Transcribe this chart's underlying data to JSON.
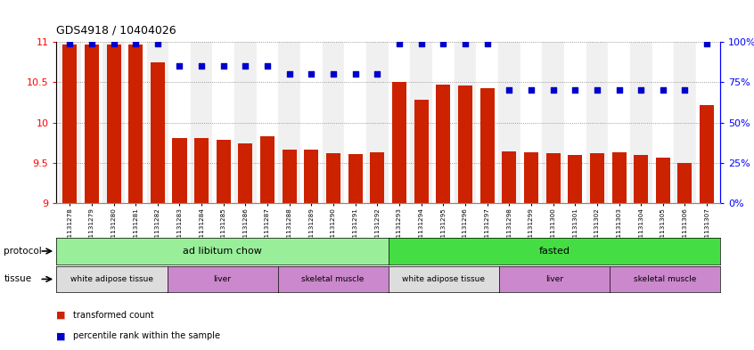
{
  "title": "GDS4918 / 10404026",
  "samples": [
    "GSM1131278",
    "GSM1131279",
    "GSM1131280",
    "GSM1131281",
    "GSM1131282",
    "GSM1131283",
    "GSM1131284",
    "GSM1131285",
    "GSM1131286",
    "GSM1131287",
    "GSM1131288",
    "GSM1131289",
    "GSM1131290",
    "GSM1131291",
    "GSM1131292",
    "GSM1131293",
    "GSM1131294",
    "GSM1131295",
    "GSM1131296",
    "GSM1131297",
    "GSM1131298",
    "GSM1131299",
    "GSM1131300",
    "GSM1131301",
    "GSM1131302",
    "GSM1131303",
    "GSM1131304",
    "GSM1131305",
    "GSM1131306",
    "GSM1131307"
  ],
  "bar_values": [
    10.97,
    10.97,
    10.97,
    10.97,
    10.75,
    9.81,
    9.81,
    9.79,
    9.74,
    9.83,
    9.66,
    9.66,
    9.62,
    9.61,
    9.63,
    10.5,
    10.28,
    10.47,
    10.46,
    10.43,
    9.64,
    9.63,
    9.62,
    9.6,
    9.62,
    9.63,
    9.6,
    9.56,
    9.5,
    10.22
  ],
  "percentile_values": [
    99,
    99,
    99,
    99,
    99,
    85,
    85,
    85,
    85,
    85,
    80,
    80,
    80,
    80,
    80,
    99,
    99,
    99,
    99,
    99,
    70,
    70,
    70,
    70,
    70,
    70,
    70,
    70,
    70,
    99
  ],
  "bar_color": "#cc2200",
  "percentile_color": "#0000cc",
  "ylim_left": [
    9.0,
    11.0
  ],
  "ylim_right": [
    0,
    100
  ],
  "yticks_left": [
    9.0,
    9.5,
    10.0,
    10.5,
    11.0
  ],
  "yticks_right": [
    0,
    25,
    50,
    75,
    100
  ],
  "protocol_labels": [
    "ad libitum chow",
    "fasted"
  ],
  "protocol_colors": [
    "#99ee99",
    "#44dd44"
  ],
  "protocol_col_ranges": [
    [
      0,
      14
    ],
    [
      15,
      29
    ]
  ],
  "tissue_labels": [
    "white adipose tissue",
    "liver",
    "skeletal muscle",
    "white adipose tissue",
    "liver",
    "skeletal muscle"
  ],
  "tissue_col_ranges": [
    [
      0,
      4
    ],
    [
      5,
      9
    ],
    [
      10,
      14
    ],
    [
      15,
      19
    ],
    [
      20,
      24
    ],
    [
      25,
      29
    ]
  ],
  "tissue_colors": [
    "#dddddd",
    "#cc88cc",
    "#cc88cc",
    "#dddddd",
    "#cc88cc",
    "#cc88cc"
  ],
  "legend_bar_label": "transformed count",
  "legend_percentile_label": "percentile rank within the sample",
  "background_color": "#ffffff",
  "bar_bottom": 9.0,
  "ymin": 9.0,
  "ymax": 11.0
}
